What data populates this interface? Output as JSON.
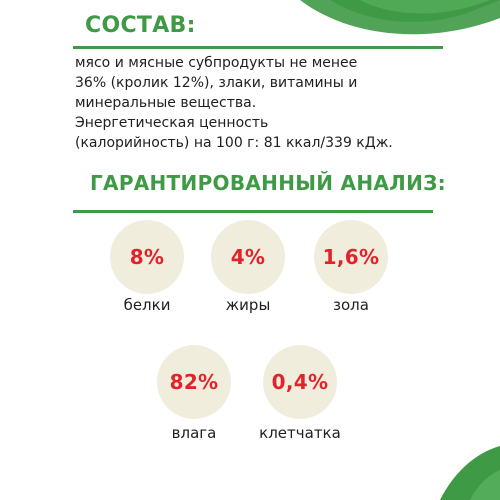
{
  "composition": {
    "title": "СОСТАВ:",
    "lines": [
      "мясо и мясные субпродукты не менее",
      "36% (кролик 12%), злаки, витамины и",
      "минеральные вещества.",
      "Энергетическая ценность",
      "(калорийность) на 100 г: 81 ккал/339 кДж."
    ]
  },
  "analysis": {
    "title": "ГАРАНТИРОВАННЫЙ АНАЛИЗ:",
    "items": [
      {
        "value": "8%",
        "label": "белки"
      },
      {
        "value": "4%",
        "label": "жиры"
      },
      {
        "value": "1,6%",
        "label": "зола"
      },
      {
        "value": "82%",
        "label": "влага"
      },
      {
        "value": "0,4%",
        "label": "клетчатка"
      }
    ]
  },
  "colors": {
    "accent_green": "#3e9a45",
    "value_red": "#e2232b",
    "circle_fill": "#f1eddc"
  }
}
